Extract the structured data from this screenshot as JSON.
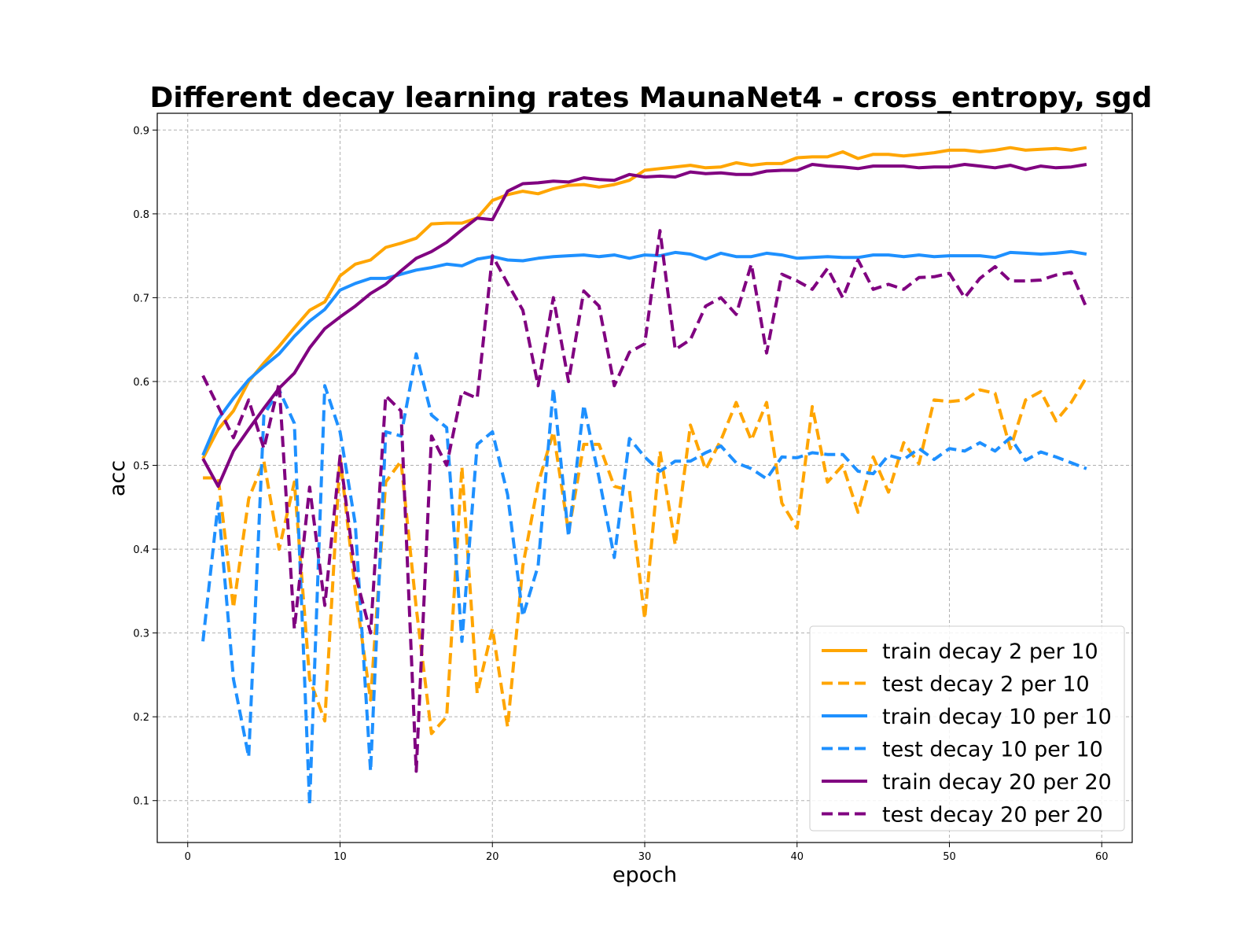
{
  "chart_data": {
    "type": "line",
    "title": "Different decay learning rates MaunaNet4 - cross_entropy, sgd",
    "xlabel": "epoch",
    "ylabel": "acc",
    "xlim": [
      -2,
      62
    ],
    "ylim": [
      0.05,
      0.92
    ],
    "xticks": [
      0,
      10,
      20,
      30,
      40,
      50,
      60
    ],
    "yticks": [
      0.1,
      0.2,
      0.3,
      0.4,
      0.5,
      0.6,
      0.7,
      0.8,
      0.9
    ],
    "grid": true,
    "legend_position": "lower-right",
    "x": [
      1,
      2,
      3,
      4,
      5,
      6,
      7,
      8,
      9,
      10,
      11,
      12,
      13,
      14,
      15,
      16,
      17,
      18,
      19,
      20,
      21,
      22,
      23,
      24,
      25,
      26,
      27,
      28,
      29,
      30,
      31,
      32,
      33,
      34,
      35,
      36,
      37,
      38,
      39,
      40,
      41,
      42,
      43,
      44,
      45,
      46,
      47,
      48,
      49,
      50,
      51,
      52,
      53,
      54,
      55,
      56,
      57,
      58,
      59
    ],
    "series": [
      {
        "name": "train decay 2 per 10",
        "color": "#FFA500",
        "dash": "solid",
        "values": [
          0.508,
          0.543,
          0.565,
          0.6,
          0.622,
          0.642,
          0.664,
          0.685,
          0.695,
          0.726,
          0.74,
          0.745,
          0.76,
          0.765,
          0.771,
          0.788,
          0.789,
          0.789,
          0.795,
          0.816,
          0.823,
          0.827,
          0.824,
          0.83,
          0.834,
          0.835,
          0.832,
          0.835,
          0.84,
          0.852,
          0.854,
          0.856,
          0.858,
          0.855,
          0.856,
          0.861,
          0.858,
          0.86,
          0.86,
          0.867,
          0.868,
          0.868,
          0.874,
          0.866,
          0.871,
          0.871,
          0.869,
          0.871,
          0.873,
          0.876,
          0.876,
          0.874,
          0.876,
          0.879,
          0.876,
          0.877,
          0.878,
          0.876,
          0.879
        ]
      },
      {
        "name": "test decay 2 per 10",
        "color": "#FFA500",
        "dash": "dashed",
        "values": [
          0.485,
          0.485,
          0.33,
          0.46,
          0.505,
          0.4,
          0.48,
          0.245,
          0.195,
          0.51,
          0.35,
          0.22,
          0.48,
          0.505,
          0.33,
          0.18,
          0.2,
          0.498,
          0.228,
          0.305,
          0.188,
          0.38,
          0.478,
          0.54,
          0.42,
          0.525,
          0.525,
          0.475,
          0.47,
          0.317,
          0.517,
          0.405,
          0.548,
          0.495,
          0.53,
          0.575,
          0.53,
          0.575,
          0.455,
          0.425,
          0.57,
          0.48,
          0.5,
          0.444,
          0.51,
          0.468,
          0.527,
          0.502,
          0.578,
          0.576,
          0.578,
          0.59,
          0.586,
          0.52,
          0.578,
          0.588,
          0.553,
          0.575,
          0.605
        ]
      },
      {
        "name": "train decay 10 per 10",
        "color": "#1E90FF",
        "dash": "solid",
        "values": [
          0.512,
          0.555,
          0.58,
          0.602,
          0.618,
          0.633,
          0.654,
          0.672,
          0.686,
          0.709,
          0.717,
          0.723,
          0.723,
          0.728,
          0.733,
          0.736,
          0.74,
          0.738,
          0.746,
          0.749,
          0.745,
          0.744,
          0.747,
          0.749,
          0.75,
          0.751,
          0.749,
          0.751,
          0.747,
          0.751,
          0.75,
          0.754,
          0.752,
          0.746,
          0.753,
          0.749,
          0.749,
          0.753,
          0.751,
          0.747,
          0.748,
          0.749,
          0.748,
          0.748,
          0.751,
          0.751,
          0.749,
          0.751,
          0.749,
          0.75,
          0.75,
          0.75,
          0.748,
          0.754,
          0.753,
          0.752,
          0.753,
          0.755,
          0.752
        ]
      },
      {
        "name": "test decay 10 per 10",
        "color": "#1E90FF",
        "dash": "dashed",
        "values": [
          0.29,
          0.455,
          0.245,
          0.152,
          0.56,
          0.59,
          0.55,
          0.095,
          0.595,
          0.54,
          0.43,
          0.135,
          0.54,
          0.535,
          0.633,
          0.56,
          0.545,
          0.29,
          0.525,
          0.54,
          0.465,
          0.32,
          0.38,
          0.592,
          0.415,
          0.572,
          0.485,
          0.39,
          0.532,
          0.51,
          0.493,
          0.505,
          0.505,
          0.515,
          0.523,
          0.503,
          0.496,
          0.484,
          0.51,
          0.509,
          0.515,
          0.513,
          0.513,
          0.493,
          0.49,
          0.512,
          0.507,
          0.52,
          0.507,
          0.52,
          0.517,
          0.527,
          0.517,
          0.533,
          0.506,
          0.516,
          0.51,
          0.503,
          0.496
        ]
      },
      {
        "name": "train decay 20 per 20",
        "color": "#800080",
        "dash": "solid",
        "values": [
          0.508,
          0.475,
          0.517,
          0.543,
          0.568,
          0.592,
          0.61,
          0.64,
          0.663,
          0.677,
          0.69,
          0.705,
          0.716,
          0.732,
          0.747,
          0.755,
          0.766,
          0.781,
          0.795,
          0.793,
          0.827,
          0.836,
          0.837,
          0.839,
          0.838,
          0.843,
          0.841,
          0.84,
          0.847,
          0.844,
          0.845,
          0.844,
          0.85,
          0.848,
          0.849,
          0.847,
          0.847,
          0.851,
          0.852,
          0.852,
          0.859,
          0.857,
          0.856,
          0.854,
          0.857,
          0.857,
          0.857,
          0.855,
          0.856,
          0.856,
          0.859,
          0.857,
          0.855,
          0.858,
          0.853,
          0.857,
          0.855,
          0.856,
          0.859
        ]
      },
      {
        "name": "test decay 20 per 20",
        "color": "#800080",
        "dash": "dashed",
        "values": [
          0.607,
          0.57,
          0.533,
          0.578,
          0.52,
          0.598,
          0.305,
          0.474,
          0.333,
          0.511,
          0.37,
          0.3,
          0.583,
          0.565,
          0.135,
          0.535,
          0.5,
          0.588,
          0.58,
          0.75,
          0.717,
          0.685,
          0.595,
          0.7,
          0.6,
          0.708,
          0.69,
          0.595,
          0.635,
          0.645,
          0.78,
          0.638,
          0.65,
          0.69,
          0.7,
          0.68,
          0.74,
          0.634,
          0.728,
          0.72,
          0.71,
          0.735,
          0.7,
          0.745,
          0.71,
          0.716,
          0.71,
          0.724,
          0.725,
          0.729,
          0.7,
          0.723,
          0.737,
          0.72,
          0.72,
          0.721,
          0.727,
          0.73,
          0.688
        ]
      }
    ]
  }
}
